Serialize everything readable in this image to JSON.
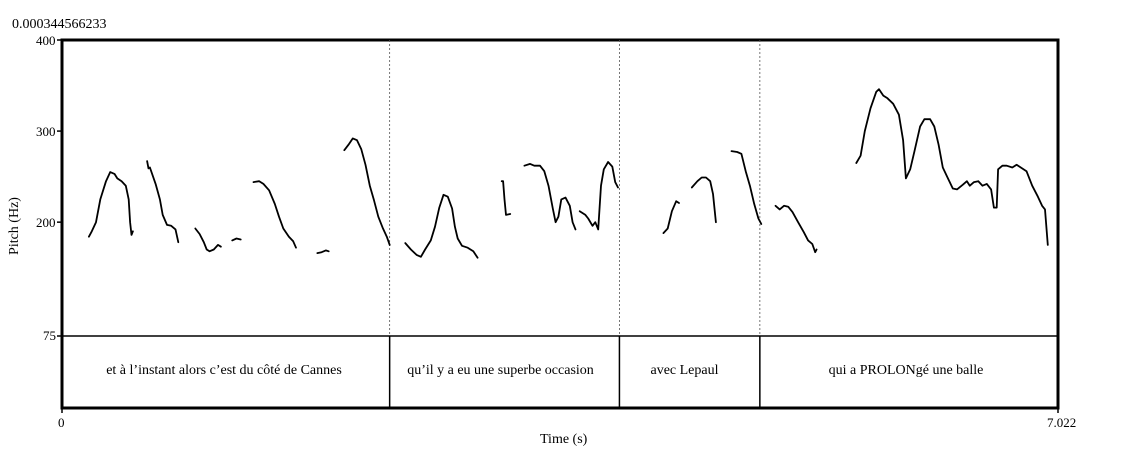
{
  "header": {
    "top_value": "0.000344566233"
  },
  "chart_data": {
    "type": "line",
    "title": "",
    "xlabel": "Time (s)",
    "ylabel": "Pitch (Hz)",
    "xlim": [
      0,
      7.022
    ],
    "x_tick_labels": [
      "0",
      "7.022"
    ],
    "ylim": [
      75,
      400
    ],
    "y_ticks": [
      75,
      200,
      300,
      400
    ],
    "y_tick_labels": [
      "75",
      "200",
      "300",
      "400"
    ],
    "boundaries": [
      2.31,
      3.93,
      4.92
    ],
    "segments": [
      {
        "label": "et à l’instant alors c’est du côté de Cannes",
        "start": 0,
        "end": 2.31
      },
      {
        "label": "qu’il y a eu une superbe occasion",
        "start": 2.31,
        "end": 3.93
      },
      {
        "label": "avec Lepaul",
        "start": 3.93,
        "end": 4.92
      },
      {
        "label": "qui a PROLONgé une balle",
        "start": 4.92,
        "end": 7.022
      }
    ],
    "series": [
      {
        "values": [
          [
            0.19,
            184
          ],
          [
            0.21,
            190
          ],
          [
            0.24,
            200
          ],
          [
            0.27,
            225
          ],
          [
            0.31,
            245
          ],
          [
            0.34,
            255
          ],
          [
            0.37,
            253
          ],
          [
            0.39,
            248
          ],
          [
            0.42,
            245
          ],
          [
            0.45,
            240
          ],
          [
            0.47,
            225
          ],
          [
            0.48,
            200
          ],
          [
            0.49,
            186
          ],
          [
            0.5,
            190
          ]
        ]
      },
      {
        "values": [
          [
            0.6,
            267
          ],
          [
            0.61,
            259
          ],
          [
            0.62,
            260
          ],
          [
            0.66,
            242
          ],
          [
            0.69,
            225
          ],
          [
            0.71,
            208
          ],
          [
            0.74,
            197
          ],
          [
            0.77,
            196
          ],
          [
            0.8,
            192
          ],
          [
            0.82,
            178
          ]
        ]
      },
      {
        "values": [
          [
            0.94,
            193
          ],
          [
            0.97,
            187
          ],
          [
            1.0,
            178
          ],
          [
            1.02,
            170
          ],
          [
            1.04,
            168
          ],
          [
            1.07,
            170
          ],
          [
            1.1,
            175
          ],
          [
            1.12,
            173
          ]
        ]
      },
      {
        "values": [
          [
            1.2,
            180
          ],
          [
            1.23,
            182
          ],
          [
            1.26,
            181
          ]
        ]
      },
      {
        "values": [
          [
            1.35,
            244
          ],
          [
            1.39,
            245
          ],
          [
            1.42,
            242
          ],
          [
            1.46,
            235
          ],
          [
            1.5,
            220
          ],
          [
            1.53,
            206
          ],
          [
            1.56,
            193
          ],
          [
            1.6,
            184
          ],
          [
            1.63,
            179
          ],
          [
            1.65,
            172
          ]
        ]
      },
      {
        "values": [
          [
            1.8,
            166
          ],
          [
            1.83,
            167
          ],
          [
            1.86,
            169
          ],
          [
            1.88,
            168
          ]
        ]
      },
      {
        "values": [
          [
            1.99,
            279
          ],
          [
            2.02,
            285
          ],
          [
            2.05,
            292
          ],
          [
            2.08,
            290
          ],
          [
            2.11,
            280
          ],
          [
            2.14,
            263
          ],
          [
            2.17,
            240
          ],
          [
            2.2,
            224
          ],
          [
            2.23,
            206
          ],
          [
            2.26,
            194
          ],
          [
            2.29,
            184
          ],
          [
            2.31,
            175
          ]
        ]
      },
      {
        "values": [
          [
            2.42,
            177
          ],
          [
            2.46,
            170
          ],
          [
            2.5,
            164
          ],
          [
            2.53,
            162
          ],
          [
            2.56,
            170
          ],
          [
            2.6,
            180
          ],
          [
            2.63,
            195
          ],
          [
            2.66,
            216
          ],
          [
            2.69,
            230
          ],
          [
            2.72,
            228
          ],
          [
            2.75,
            215
          ],
          [
            2.77,
            195
          ],
          [
            2.79,
            182
          ],
          [
            2.82,
            174
          ],
          [
            2.86,
            172
          ],
          [
            2.9,
            168
          ],
          [
            2.93,
            161
          ]
        ]
      },
      {
        "values": [
          [
            3.1,
            245
          ],
          [
            3.11,
            245
          ],
          [
            3.12,
            225
          ],
          [
            3.13,
            208
          ],
          [
            3.16,
            209
          ]
        ]
      },
      {
        "values": [
          [
            3.26,
            262
          ],
          [
            3.3,
            264
          ],
          [
            3.33,
            262
          ],
          [
            3.37,
            262
          ],
          [
            3.4,
            256
          ],
          [
            3.43,
            240
          ],
          [
            3.46,
            215
          ],
          [
            3.48,
            200
          ],
          [
            3.5,
            206
          ],
          [
            3.52,
            225
          ],
          [
            3.55,
            227
          ],
          [
            3.58,
            218
          ],
          [
            3.6,
            200
          ],
          [
            3.62,
            192
          ]
        ]
      },
      {
        "values": [
          [
            3.65,
            212
          ],
          [
            3.69,
            208
          ],
          [
            3.71,
            204
          ],
          [
            3.74,
            196
          ],
          [
            3.76,
            200
          ],
          [
            3.78,
            192
          ],
          [
            3.8,
            240
          ],
          [
            3.82,
            258
          ],
          [
            3.85,
            266
          ],
          [
            3.88,
            261
          ],
          [
            3.9,
            244
          ],
          [
            3.92,
            238
          ]
        ]
      },
      {
        "values": [
          [
            4.24,
            188
          ],
          [
            4.27,
            193
          ],
          [
            4.3,
            212
          ],
          [
            4.33,
            223
          ],
          [
            4.35,
            221
          ]
        ]
      },
      {
        "values": [
          [
            4.44,
            238
          ],
          [
            4.48,
            245
          ],
          [
            4.51,
            249
          ],
          [
            4.54,
            249
          ],
          [
            4.57,
            245
          ],
          [
            4.59,
            231
          ],
          [
            4.61,
            200
          ]
        ]
      },
      {
        "values": [
          [
            4.72,
            278
          ],
          [
            4.76,
            277
          ],
          [
            4.79,
            275
          ],
          [
            4.82,
            256
          ],
          [
            4.85,
            240
          ],
          [
            4.88,
            220
          ],
          [
            4.91,
            204
          ],
          [
            4.93,
            198
          ]
        ]
      },
      {
        "values": [
          [
            5.03,
            218
          ],
          [
            5.06,
            214
          ],
          [
            5.09,
            218
          ],
          [
            5.12,
            217
          ],
          [
            5.15,
            211
          ],
          [
            5.19,
            200
          ],
          [
            5.23,
            189
          ],
          [
            5.26,
            180
          ],
          [
            5.29,
            176
          ],
          [
            5.31,
            167
          ],
          [
            5.32,
            170
          ]
        ]
      },
      {
        "values": [
          [
            5.6,
            265
          ],
          [
            5.63,
            273
          ],
          [
            5.66,
            300
          ],
          [
            5.7,
            325
          ],
          [
            5.74,
            343
          ],
          [
            5.76,
            346
          ],
          [
            5.79,
            339
          ],
          [
            5.82,
            336
          ],
          [
            5.86,
            330
          ],
          [
            5.9,
            318
          ],
          [
            5.93,
            290
          ],
          [
            5.95,
            248
          ],
          [
            5.98,
            258
          ],
          [
            6.01,
            278
          ],
          [
            6.05,
            305
          ],
          [
            6.08,
            313
          ],
          [
            6.12,
            313
          ],
          [
            6.15,
            305
          ],
          [
            6.18,
            285
          ],
          [
            6.21,
            260
          ],
          [
            6.24,
            250
          ],
          [
            6.28,
            237
          ],
          [
            6.31,
            236
          ],
          [
            6.35,
            241
          ],
          [
            6.38,
            245
          ],
          [
            6.4,
            240
          ],
          [
            6.43,
            244
          ],
          [
            6.46,
            245
          ],
          [
            6.49,
            240
          ],
          [
            6.52,
            242
          ],
          [
            6.55,
            236
          ],
          [
            6.57,
            216
          ],
          [
            6.59,
            216
          ],
          [
            6.6,
            258
          ],
          [
            6.63,
            262
          ],
          [
            6.66,
            262
          ],
          [
            6.7,
            260
          ],
          [
            6.73,
            263
          ],
          [
            6.76,
            260
          ],
          [
            6.8,
            256
          ],
          [
            6.84,
            240
          ],
          [
            6.88,
            228
          ],
          [
            6.91,
            218
          ],
          [
            6.93,
            214
          ],
          [
            6.95,
            175
          ]
        ]
      }
    ]
  }
}
